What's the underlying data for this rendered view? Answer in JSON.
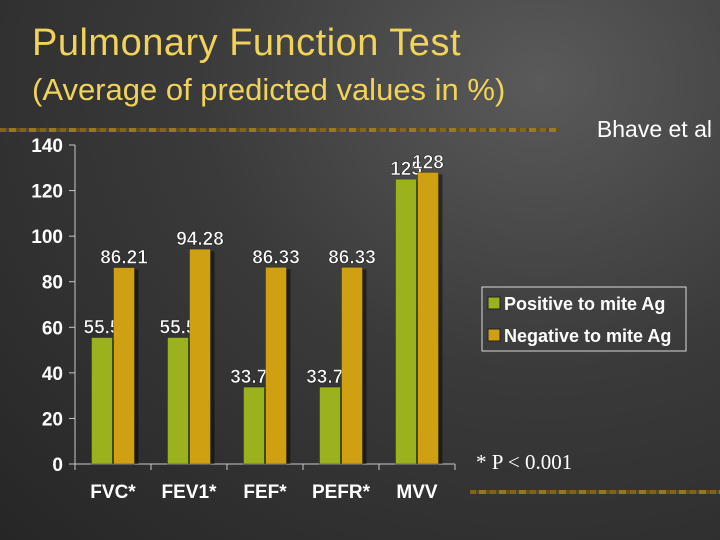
{
  "slide": {
    "title": "Pulmonary Function Test",
    "subtitle": "(Average of predicted values in %)",
    "citation": "Bhave et al",
    "footnote": "* P < 0.001"
  },
  "colors": {
    "series1": "#9bb21e",
    "series2": "#cfa012",
    "title": "#f2d35a",
    "axis_text": "#ffffff"
  },
  "chart_data": {
    "type": "bar",
    "categories": [
      "FVC*",
      "FEV1*",
      "FEF*",
      "PEFR*",
      "MVV"
    ],
    "series": [
      {
        "name": "Positive to mite Ag",
        "values": [
          55.5,
          55.5,
          33.75,
          33.75,
          125
        ],
        "labels": [
          "55.5",
          "55.5",
          "33.75",
          "33.75",
          "125"
        ]
      },
      {
        "name": "Negative to mite Ag",
        "values": [
          86.21,
          94.28,
          86.33,
          86.33,
          128
        ],
        "labels": [
          "86.21",
          "94.28",
          "86.33",
          "86.33",
          "128"
        ]
      }
    ],
    "ylim": [
      0,
      140
    ],
    "yticks": [
      "0",
      "20",
      "40",
      "60",
      "80",
      "100",
      "120",
      "140"
    ],
    "legend_position": "right",
    "grid": false
  }
}
